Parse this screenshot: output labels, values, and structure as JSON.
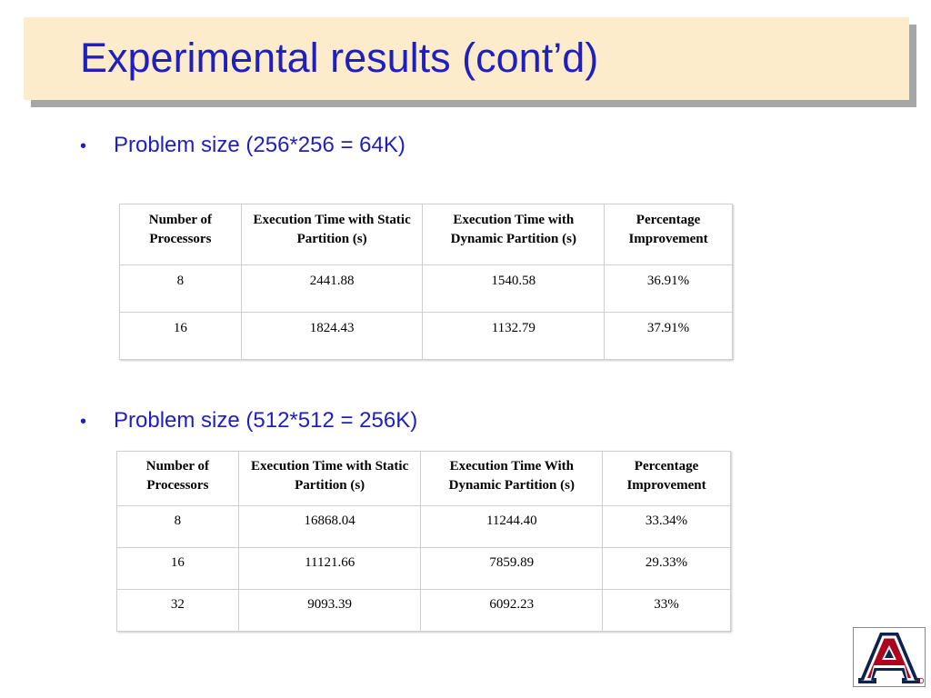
{
  "slide": {
    "title": "Experimental results (cont’d)"
  },
  "section1": {
    "bullet": "•",
    "heading": "Problem size (256*256 = 64K)",
    "headers": [
      "Number of Processors",
      "Execution Time with Static Partition (s)",
      "Execution Time with Dynamic Partition (s)",
      "Percentage Improvement"
    ],
    "rows": [
      [
        "8",
        "2441.88",
        "1540.58",
        "36.91%"
      ],
      [
        "16",
        "1824.43",
        "1132.79",
        "37.91%"
      ]
    ]
  },
  "section2": {
    "bullet": "•",
    "heading": "Problem size (512*512 = 256K)",
    "headers": [
      "Number of Processors",
      "Execution Time with Static Partition (s)",
      "Execution Time With Dynamic Partition (s)",
      "Percentage Improvement"
    ],
    "rows": [
      [
        "8",
        "16868.04",
        "11244.40",
        "33.34%"
      ],
      [
        "16",
        "11121.66",
        "7859.89",
        "29.33%"
      ],
      [
        "32",
        "9093.39",
        "6092.23",
        "33%"
      ]
    ]
  },
  "logo": {
    "letter": "A",
    "mark": "®",
    "colors": {
      "navy": "#0c234b",
      "red": "#ab0520"
    }
  }
}
